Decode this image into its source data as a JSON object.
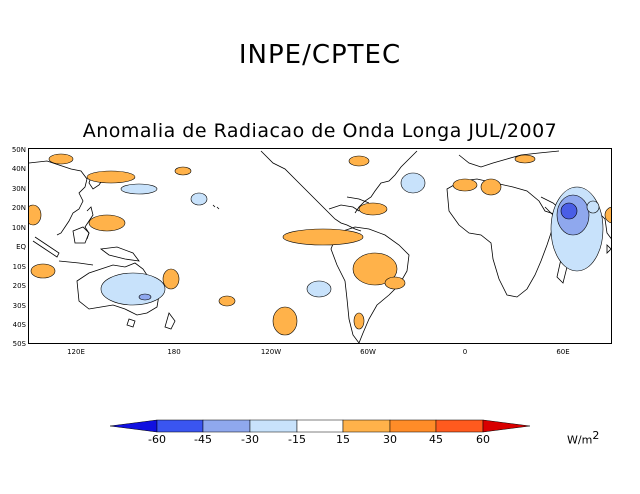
{
  "header": {
    "organization": "INPE/CPTEC",
    "map_title": "Anomalia de Radiacao de Onda Longa JUL/2007"
  },
  "map": {
    "latitude_labels": [
      "50N",
      "40N",
      "30N",
      "20N",
      "10N",
      "EQ",
      "10S",
      "20S",
      "30S",
      "40S",
      "50S"
    ],
    "longitude_labels": [
      "120E",
      "180",
      "120W",
      "60W",
      "0",
      "60E"
    ],
    "colors": {
      "coastline": "#000000",
      "positive_fill": "#ffb24a",
      "negative_fill_light": "#c8e2fb",
      "negative_fill_mid": "#8fa8ee",
      "negative_fill_dark": "#4a5ee6"
    }
  },
  "legend": {
    "labels": [
      "-60",
      "-45",
      "-30",
      "-15",
      "15",
      "30",
      "45",
      "60"
    ],
    "colors": [
      "#1010e0",
      "#3a55f0",
      "#8fa8ee",
      "#c8e2fb",
      "#ffffff",
      "#ffb24a",
      "#ff8c28",
      "#ff5a1e",
      "#d80000"
    ],
    "units_text": "W/m",
    "units_exponent": "2"
  }
}
